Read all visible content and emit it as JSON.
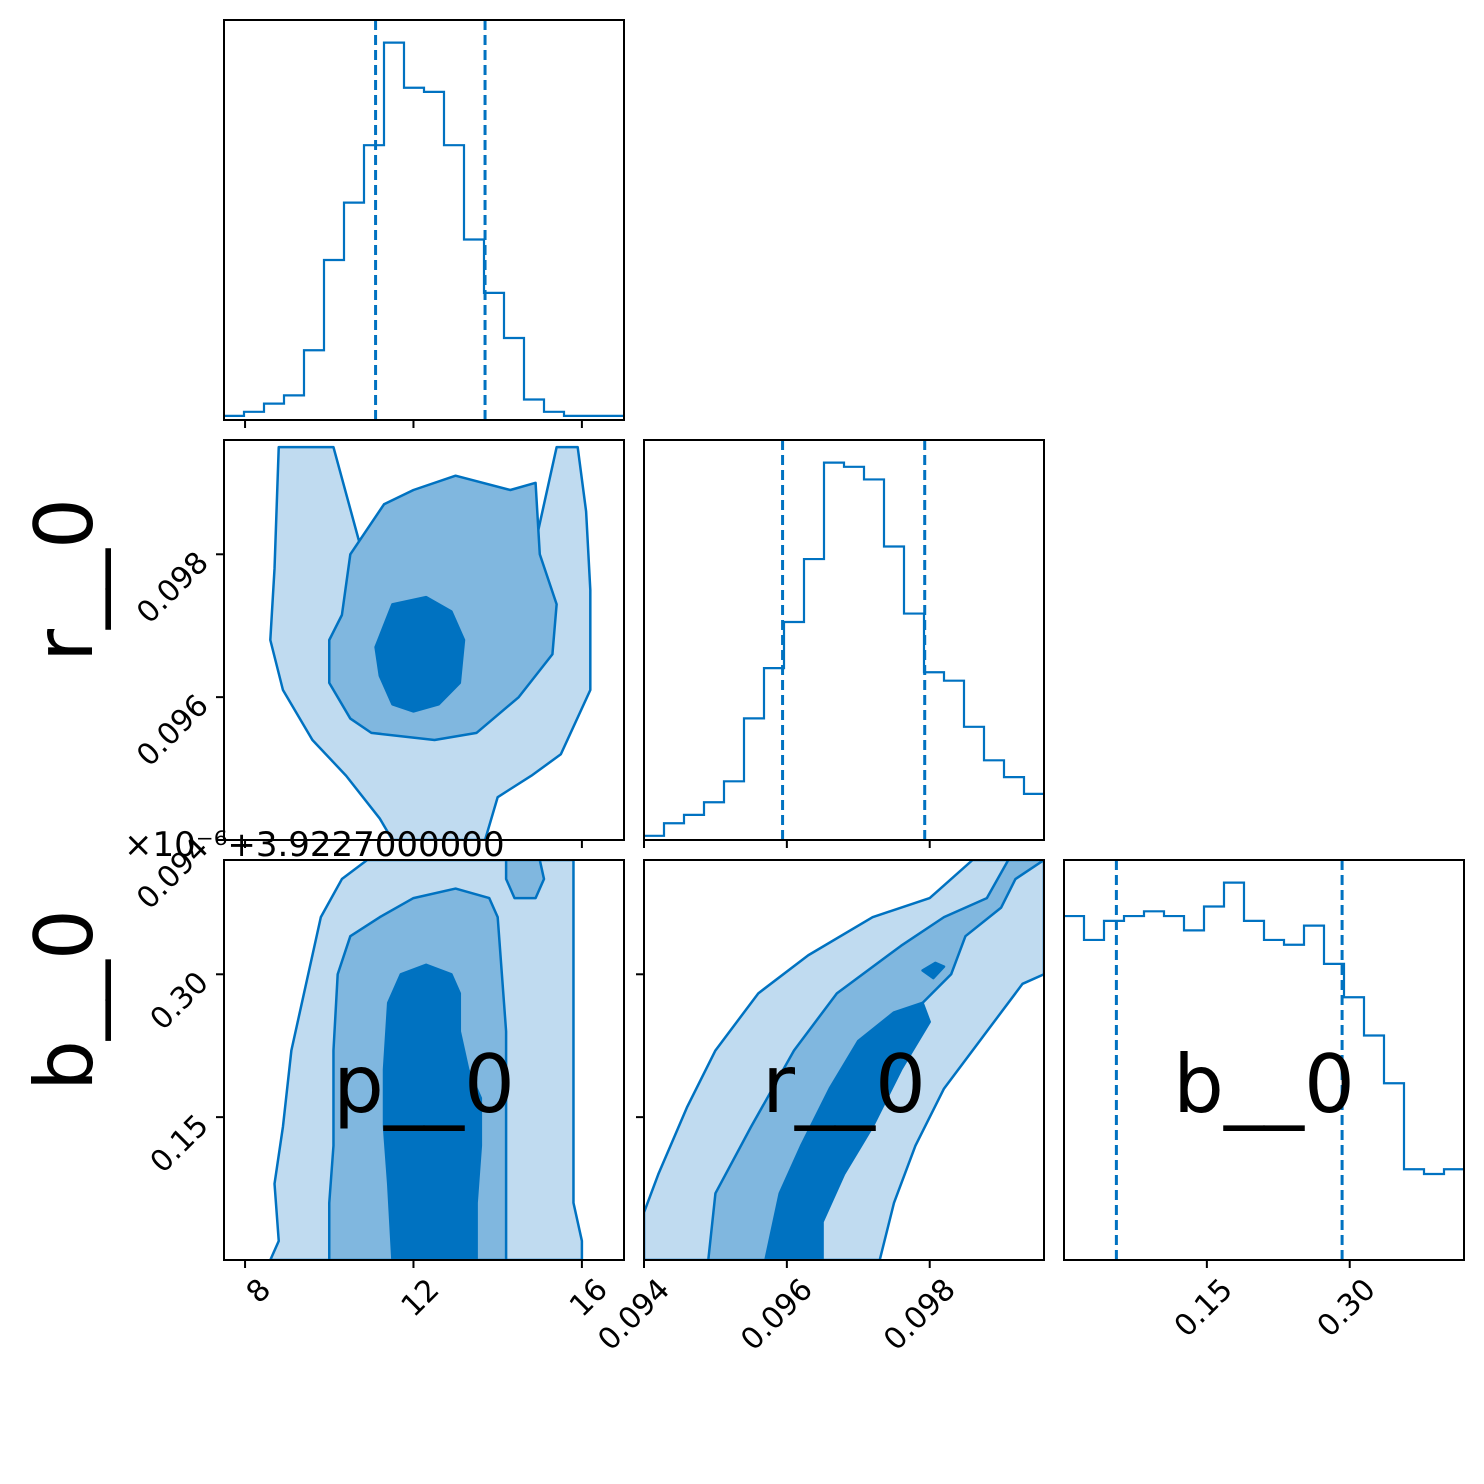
{
  "chart_data": {
    "type": "corner",
    "color": "#0072c1",
    "fill_colors": [
      "#c0dbf0",
      "#80b7df",
      "#0072c1"
    ],
    "parameters": [
      "p__0",
      "r__0",
      "b__0"
    ],
    "offset_label": "×10⁻⁶+3.9227000000",
    "axes": {
      "p__0": {
        "range": [
          7.5,
          17.0
        ],
        "ticks": [
          8,
          12,
          16
        ],
        "tick_labels": [
          "8",
          "12",
          "16"
        ]
      },
      "r__0": {
        "range": [
          0.094,
          0.0996
        ],
        "ticks": [
          0.094,
          0.096,
          0.098
        ],
        "tick_labels": [
          "0.094",
          "0.096",
          "0.098"
        ]
      },
      "b__0": {
        "range": [
          0.0,
          0.42
        ],
        "ticks": [
          0.15,
          0.3
        ],
        "tick_labels": [
          "0.15",
          "0.30"
        ]
      }
    },
    "histograms": {
      "p__0": {
        "bin_edges": [
          7.5,
          7.975,
          8.45,
          8.925,
          9.4,
          9.875,
          10.35,
          10.825,
          11.3,
          11.775,
          12.25,
          12.725,
          13.2,
          13.675,
          14.15,
          14.625,
          15.1,
          15.575,
          16.05,
          16.525,
          17.0
        ],
        "counts": [
          1,
          2,
          4,
          6,
          17,
          39,
          53,
          67,
          92,
          81,
          80,
          67,
          44,
          31,
          20,
          5,
          2,
          1,
          1,
          1
        ],
        "quantiles": [
          11.1,
          13.7
        ]
      },
      "r__0": {
        "bin_edges": [
          0.094,
          0.09428,
          0.09456,
          0.09484,
          0.09512,
          0.0954,
          0.09568,
          0.09596,
          0.09624,
          0.09652,
          0.0968,
          0.09708,
          0.09736,
          0.09764,
          0.09792,
          0.0982,
          0.09848,
          0.09876,
          0.09904,
          0.09932,
          0.0996
        ],
        "counts": [
          1,
          4,
          6,
          9,
          14,
          29,
          41,
          52,
          67,
          90,
          89,
          86,
          70,
          54,
          40,
          38,
          27,
          19,
          15,
          11
        ],
        "quantiles": [
          0.09594,
          0.09793
        ]
      },
      "b__0": {
        "bin_edges": [
          0.0,
          0.021,
          0.042,
          0.063,
          0.084,
          0.105,
          0.126,
          0.147,
          0.168,
          0.189,
          0.21,
          0.231,
          0.252,
          0.273,
          0.294,
          0.315,
          0.336,
          0.357,
          0.378,
          0.399,
          0.42
        ],
        "counts": [
          72,
          67,
          71,
          72,
          73,
          72,
          69,
          74,
          79,
          71,
          67,
          66,
          70,
          62,
          55,
          47,
          37,
          19,
          18,
          19
        ],
        "quantiles": [
          0.055,
          0.292
        ]
      }
    },
    "contour_levels": [
      "outer",
      "middle",
      "inner"
    ],
    "contours": {
      "r__0_vs_p__0": [
        [
          [
            8.8,
            0.0995
          ],
          [
            10.1,
            0.0995
          ],
          [
            10.7,
            0.0982
          ],
          [
            11.8,
            0.0984
          ],
          [
            13.0,
            0.0985
          ],
          [
            13.9,
            0.0982
          ],
          [
            14.8,
            0.0979
          ],
          [
            15.4,
            0.0995
          ],
          [
            15.9,
            0.0995
          ],
          [
            16.1,
            0.0986
          ],
          [
            16.2,
            0.0975
          ],
          [
            16.2,
            0.0961
          ],
          [
            15.5,
            0.0952
          ],
          [
            14.8,
            0.0949
          ],
          [
            14.0,
            0.0946
          ],
          [
            13.7,
            0.094
          ],
          [
            11.5,
            0.094
          ],
          [
            11.2,
            0.0943
          ],
          [
            10.4,
            0.0949
          ],
          [
            9.6,
            0.0954
          ],
          [
            8.9,
            0.0961
          ],
          [
            8.6,
            0.0968
          ],
          [
            8.7,
            0.0978
          ],
          [
            8.8,
            0.0995
          ]
        ],
        [
          [
            10.3,
            0.09715
          ],
          [
            10.0,
            0.0968
          ],
          [
            10.0,
            0.0962
          ],
          [
            10.5,
            0.0957
          ],
          [
            11.0,
            0.0955
          ],
          [
            12.5,
            0.0954
          ],
          [
            13.5,
            0.0955
          ],
          [
            14.5,
            0.096
          ],
          [
            15.3,
            0.0966
          ],
          [
            15.4,
            0.0973
          ],
          [
            15.0,
            0.098
          ],
          [
            14.9,
            0.099
          ],
          [
            14.3,
            0.0989
          ],
          [
            13.0,
            0.0991
          ],
          [
            12.0,
            0.0989
          ],
          [
            11.3,
            0.0987
          ],
          [
            10.5,
            0.098
          ],
          [
            10.3,
            0.09715
          ]
        ],
        [
          [
            11.5,
            0.0973
          ],
          [
            12.3,
            0.0974
          ],
          [
            12.9,
            0.0972
          ],
          [
            13.2,
            0.0968
          ],
          [
            13.1,
            0.0962
          ],
          [
            12.6,
            0.0959
          ],
          [
            12.0,
            0.0958
          ],
          [
            11.5,
            0.0959
          ],
          [
            11.2,
            0.0963
          ],
          [
            11.1,
            0.0967
          ],
          [
            11.5,
            0.0973
          ]
        ]
      ],
      "b__0_vs_p__0": [
        [
          [
            8.6,
            0.0
          ],
          [
            16.0,
            0.0
          ],
          [
            16.0,
            0.02
          ],
          [
            15.8,
            0.06
          ],
          [
            15.8,
            0.14
          ],
          [
            15.8,
            0.2
          ],
          [
            15.8,
            0.26
          ],
          [
            15.8,
            0.34
          ],
          [
            15.8,
            0.42
          ],
          [
            10.9,
            0.42
          ],
          [
            10.3,
            0.4
          ],
          [
            9.8,
            0.36
          ],
          [
            9.5,
            0.3
          ],
          [
            9.1,
            0.22
          ],
          [
            8.9,
            0.14
          ],
          [
            8.7,
            0.08
          ],
          [
            8.8,
            0.02
          ],
          [
            8.6,
            0.0
          ]
        ],
        [
          [
            10.0,
            0.0
          ],
          [
            14.2,
            0.0
          ],
          [
            14.2,
            0.04
          ],
          [
            14.2,
            0.1
          ],
          [
            14.2,
            0.16
          ],
          [
            14.2,
            0.24
          ],
          [
            14.1,
            0.3
          ],
          [
            14.0,
            0.36
          ],
          [
            13.8,
            0.38
          ],
          [
            13.0,
            0.39
          ],
          [
            12.0,
            0.38
          ],
          [
            11.2,
            0.36
          ],
          [
            10.5,
            0.34
          ],
          [
            10.2,
            0.3
          ],
          [
            10.1,
            0.22
          ],
          [
            10.1,
            0.12
          ],
          [
            10.0,
            0.06
          ],
          [
            10.0,
            0.0
          ]
        ],
        [
          [
            11.5,
            0.0
          ],
          [
            13.5,
            0.0
          ],
          [
            13.5,
            0.06
          ],
          [
            13.6,
            0.12
          ],
          [
            13.6,
            0.17
          ],
          [
            13.3,
            0.2
          ],
          [
            13.1,
            0.24
          ],
          [
            13.1,
            0.28
          ],
          [
            12.9,
            0.3
          ],
          [
            12.3,
            0.31
          ],
          [
            11.7,
            0.3
          ],
          [
            11.4,
            0.27
          ],
          [
            11.3,
            0.2
          ],
          [
            11.3,
            0.14
          ],
          [
            11.4,
            0.08
          ],
          [
            11.5,
            0.0
          ]
        ]
      ],
      "b__0_vs_r__0": [
        [
          [
            0.094,
            0.0
          ],
          [
            0.0973,
            0.0
          ],
          [
            0.0975,
            0.06
          ],
          [
            0.0978,
            0.12
          ],
          [
            0.0982,
            0.18
          ],
          [
            0.0986,
            0.22
          ],
          [
            0.099,
            0.26
          ],
          [
            0.0993,
            0.29
          ],
          [
            0.0996,
            0.3
          ],
          [
            0.0996,
            0.42
          ],
          [
            0.0986,
            0.42
          ],
          [
            0.098,
            0.38
          ],
          [
            0.0972,
            0.36
          ],
          [
            0.0963,
            0.32
          ],
          [
            0.0956,
            0.28
          ],
          [
            0.095,
            0.22
          ],
          [
            0.0946,
            0.16
          ],
          [
            0.0942,
            0.09
          ],
          [
            0.094,
            0.05
          ],
          [
            0.094,
            0.0
          ]
        ],
        [
          [
            0.0949,
            0.0
          ],
          [
            0.096,
            0.0
          ],
          [
            0.096,
            0.03
          ],
          [
            0.0963,
            0.07
          ],
          [
            0.0966,
            0.13
          ],
          [
            0.0972,
            0.2
          ],
          [
            0.0976,
            0.24
          ],
          [
            0.0979,
            0.27
          ],
          [
            0.0983,
            0.3
          ],
          [
            0.0985,
            0.34
          ],
          [
            0.099,
            0.37
          ],
          [
            0.0992,
            0.4
          ],
          [
            0.0996,
            0.42
          ],
          [
            0.0991,
            0.42
          ],
          [
            0.0988,
            0.38
          ],
          [
            0.0982,
            0.36
          ],
          [
            0.0976,
            0.33
          ],
          [
            0.0967,
            0.28
          ],
          [
            0.0961,
            0.22
          ],
          [
            0.0955,
            0.14
          ],
          [
            0.095,
            0.07
          ],
          [
            0.0949,
            0.0
          ]
        ],
        [
          [
            0.0957,
            0.0
          ],
          [
            0.0965,
            0.0
          ],
          [
            0.0965,
            0.04
          ],
          [
            0.0968,
            0.09
          ],
          [
            0.0972,
            0.14
          ],
          [
            0.0976,
            0.2
          ],
          [
            0.098,
            0.25
          ],
          [
            0.0979,
            0.27
          ],
          [
            0.0975,
            0.26
          ],
          [
            0.097,
            0.23
          ],
          [
            0.0966,
            0.18
          ],
          [
            0.0962,
            0.12
          ],
          [
            0.0959,
            0.07
          ],
          [
            0.0957,
            0.0
          ]
        ]
      ]
    },
    "islands": {
      "b__0_vs_p__0": [
        [
          [
            14.2,
            0.42
          ],
          [
            15.0,
            0.42
          ],
          [
            15.1,
            0.4
          ],
          [
            14.9,
            0.38
          ],
          [
            14.4,
            0.38
          ],
          [
            14.2,
            0.4
          ],
          [
            14.2,
            0.42
          ]
        ]
      ],
      "b__0_vs_r__0": [
        [
          [
            0.0979,
            0.304
          ],
          [
            0.09808,
            0.312
          ],
          [
            0.0982,
            0.308
          ],
          [
            0.09805,
            0.296
          ],
          [
            0.0979,
            0.304
          ]
        ]
      ]
    }
  }
}
